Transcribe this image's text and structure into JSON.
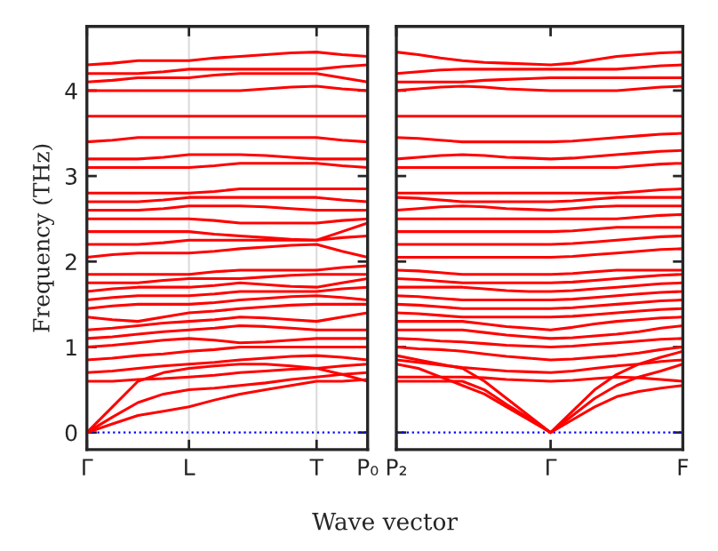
{
  "chart_data": [
    {
      "type": "line",
      "ylabel": "Frequency (THz)",
      "xlabel": "Wave vector",
      "categories": [
        "Γ",
        null,
        null,
        null,
        "L",
        null,
        null,
        null,
        null,
        "T",
        null,
        "P₀"
      ],
      "ylim": [
        -0.2,
        4.75
      ],
      "yticks": [
        0,
        1,
        2,
        3,
        4
      ],
      "grid": "x",
      "legend": false,
      "line_style": "solid",
      "ref_lines": [
        {
          "axis": "y",
          "value": 0,
          "color": "#0000ff",
          "line_style": "dotted"
        }
      ],
      "series": [
        {
          "color": "#ff0000",
          "values": [
            0,
            0.1,
            0.2,
            0.25,
            0.3,
            0.38,
            0.45,
            0.5,
            0.55,
            0.6,
            0.6,
            0.62
          ]
        },
        {
          "color": "#ff0000",
          "values": [
            0,
            0.18,
            0.35,
            0.45,
            0.5,
            0.52,
            0.55,
            0.58,
            0.62,
            0.65,
            0.68,
            0.7
          ]
        },
        {
          "color": "#ff0000",
          "values": [
            0,
            0.3,
            0.6,
            0.7,
            0.75,
            0.78,
            0.8,
            0.8,
            0.78,
            0.75,
            0.78,
            0.8
          ]
        },
        {
          "color": "#ff0000",
          "values": [
            0.6,
            0.6,
            0.62,
            0.63,
            0.65,
            0.67,
            0.7,
            0.72,
            0.74,
            0.75,
            0.68,
            0.6
          ]
        },
        {
          "color": "#ff0000",
          "values": [
            0.7,
            0.72,
            0.75,
            0.78,
            0.8,
            0.82,
            0.85,
            0.87,
            0.89,
            0.9,
            0.88,
            0.85
          ]
        },
        {
          "color": "#ff0000",
          "values": [
            0.85,
            0.87,
            0.9,
            0.92,
            0.95,
            0.97,
            1.0,
            1.0,
            1.0,
            1.0,
            1.0,
            1.0
          ]
        },
        {
          "color": "#ff0000",
          "values": [
            1.0,
            1.02,
            1.05,
            1.08,
            1.1,
            1.08,
            1.05,
            1.06,
            1.08,
            1.1,
            1.1,
            1.1
          ]
        },
        {
          "color": "#ff0000",
          "values": [
            1.1,
            1.12,
            1.15,
            1.18,
            1.2,
            1.22,
            1.25,
            1.24,
            1.22,
            1.2,
            1.2,
            1.2
          ]
        },
        {
          "color": "#ff0000",
          "values": [
            1.2,
            1.22,
            1.25,
            1.28,
            1.3,
            1.32,
            1.35,
            1.34,
            1.32,
            1.3,
            1.35,
            1.4
          ]
        },
        {
          "color": "#ff0000",
          "values": [
            1.35,
            1.32,
            1.3,
            1.35,
            1.4,
            1.42,
            1.45,
            1.47,
            1.49,
            1.5,
            1.5,
            1.5
          ]
        },
        {
          "color": "#ff0000",
          "values": [
            1.45,
            1.48,
            1.5,
            1.5,
            1.5,
            1.52,
            1.55,
            1.57,
            1.59,
            1.6,
            1.58,
            1.55
          ]
        },
        {
          "color": "#ff0000",
          "values": [
            1.55,
            1.58,
            1.6,
            1.6,
            1.6,
            1.62,
            1.65,
            1.65,
            1.65,
            1.65,
            1.68,
            1.7
          ]
        },
        {
          "color": "#ff0000",
          "values": [
            1.65,
            1.68,
            1.7,
            1.7,
            1.7,
            1.72,
            1.75,
            1.73,
            1.71,
            1.7,
            1.75,
            1.8
          ]
        },
        {
          "color": "#ff0000",
          "values": [
            1.75,
            1.75,
            1.75,
            1.78,
            1.8,
            1.8,
            1.8,
            1.82,
            1.84,
            1.85,
            1.85,
            1.85
          ]
        },
        {
          "color": "#ff0000",
          "values": [
            1.85,
            1.85,
            1.85,
            1.85,
            1.85,
            1.88,
            1.9,
            1.9,
            1.9,
            1.9,
            1.93,
            1.95
          ]
        },
        {
          "color": "#ff0000",
          "values": [
            2.05,
            2.08,
            2.1,
            2.1,
            2.1,
            2.12,
            2.15,
            2.17,
            2.19,
            2.2,
            2.12,
            2.05
          ]
        },
        {
          "color": "#ff0000",
          "values": [
            2.2,
            2.2,
            2.2,
            2.22,
            2.25,
            2.25,
            2.25,
            2.25,
            2.25,
            2.25,
            2.28,
            2.3
          ]
        },
        {
          "color": "#ff0000",
          "values": [
            2.35,
            2.35,
            2.35,
            2.35,
            2.35,
            2.32,
            2.3,
            2.28,
            2.26,
            2.25,
            2.35,
            2.45
          ]
        },
        {
          "color": "#ff0000",
          "values": [
            2.5,
            2.5,
            2.5,
            2.5,
            2.5,
            2.48,
            2.45,
            2.45,
            2.45,
            2.45,
            2.48,
            2.5
          ]
        },
        {
          "color": "#ff0000",
          "values": [
            2.6,
            2.6,
            2.6,
            2.62,
            2.65,
            2.65,
            2.65,
            2.64,
            2.62,
            2.6,
            2.6,
            2.6
          ]
        },
        {
          "color": "#ff0000",
          "values": [
            2.7,
            2.7,
            2.7,
            2.72,
            2.75,
            2.75,
            2.75,
            2.75,
            2.75,
            2.75,
            2.72,
            2.7
          ]
        },
        {
          "color": "#ff0000",
          "values": [
            2.8,
            2.8,
            2.8,
            2.8,
            2.8,
            2.82,
            2.85,
            2.85,
            2.85,
            2.85,
            2.85,
            2.85
          ]
        },
        {
          "color": "#ff0000",
          "values": [
            3.1,
            3.1,
            3.1,
            3.1,
            3.1,
            3.12,
            3.15,
            3.15,
            3.15,
            3.15,
            3.12,
            3.1
          ]
        },
        {
          "color": "#ff0000",
          "values": [
            3.2,
            3.2,
            3.2,
            3.22,
            3.25,
            3.25,
            3.25,
            3.24,
            3.22,
            3.2,
            3.2,
            3.2
          ]
        },
        {
          "color": "#ff0000",
          "values": [
            3.4,
            3.42,
            3.45,
            3.45,
            3.45,
            3.45,
            3.45,
            3.45,
            3.45,
            3.45,
            3.42,
            3.4
          ]
        },
        {
          "color": "#ff0000",
          "values": [
            3.7,
            3.7,
            3.7,
            3.7,
            3.7,
            3.7,
            3.7,
            3.7,
            3.7,
            3.7,
            3.7,
            3.7
          ]
        },
        {
          "color": "#ff0000",
          "values": [
            4.0,
            4.0,
            4.0,
            4.0,
            4.0,
            4.0,
            4.0,
            4.02,
            4.04,
            4.05,
            4.02,
            4.0
          ]
        },
        {
          "color": "#ff0000",
          "values": [
            4.1,
            4.12,
            4.15,
            4.15,
            4.15,
            4.18,
            4.2,
            4.2,
            4.2,
            4.2,
            4.15,
            4.1
          ]
        },
        {
          "color": "#ff0000",
          "values": [
            4.2,
            4.2,
            4.2,
            4.22,
            4.25,
            4.25,
            4.25,
            4.25,
            4.25,
            4.25,
            4.28,
            4.3
          ]
        },
        {
          "color": "#ff0000",
          "values": [
            4.3,
            4.32,
            4.35,
            4.35,
            4.35,
            4.38,
            4.4,
            4.42,
            4.44,
            4.45,
            4.42,
            4.4
          ]
        }
      ]
    },
    {
      "type": "line",
      "categories": [
        "P₂",
        null,
        null,
        null,
        null,
        null,
        null,
        "Γ",
        null,
        null,
        null,
        null,
        null,
        "F"
      ],
      "ylim": [
        -0.2,
        4.75
      ],
      "yticks": [
        0,
        1,
        2,
        3,
        4
      ],
      "tick_labels": "x",
      "grid": false,
      "legend": false,
      "line_style": "solid",
      "ref_lines": [
        {
          "axis": "y",
          "value": 0,
          "color": "#0000ff",
          "line_style": "dotted"
        }
      ],
      "series": [
        {
          "color": "#ff0000",
          "values": [
            0.6,
            0.6,
            0.6,
            0.6,
            0.5,
            0.33,
            0.17,
            0,
            0.15,
            0.3,
            0.42,
            0.48,
            0.52,
            0.55
          ]
        },
        {
          "color": "#ff0000",
          "values": [
            0.8,
            0.75,
            0.65,
            0.55,
            0.45,
            0.3,
            0.15,
            0,
            0.2,
            0.4,
            0.55,
            0.65,
            0.72,
            0.8
          ]
        },
        {
          "color": "#ff0000",
          "values": [
            0.9,
            0.85,
            0.8,
            0.75,
            0.6,
            0.4,
            0.2,
            0,
            0.25,
            0.5,
            0.68,
            0.8,
            0.88,
            0.95
          ]
        },
        {
          "color": "#ff0000",
          "values": [
            0.65,
            0.65,
            0.65,
            0.65,
            0.64,
            0.62,
            0.61,
            0.6,
            0.61,
            0.63,
            0.65,
            0.64,
            0.62,
            0.6
          ]
        },
        {
          "color": "#ff0000",
          "values": [
            0.85,
            0.82,
            0.79,
            0.76,
            0.74,
            0.72,
            0.71,
            0.7,
            0.72,
            0.75,
            0.78,
            0.8,
            0.83,
            0.85
          ]
        },
        {
          "color": "#ff0000",
          "values": [
            1.0,
            0.98,
            0.97,
            0.95,
            0.92,
            0.89,
            0.87,
            0.85,
            0.86,
            0.88,
            0.9,
            0.93,
            0.97,
            1.0
          ]
        },
        {
          "color": "#ff0000",
          "values": [
            1.1,
            1.09,
            1.07,
            1.06,
            1.04,
            1.02,
            1.01,
            1.0,
            1.01,
            1.03,
            1.05,
            1.07,
            1.09,
            1.1
          ]
        },
        {
          "color": "#ff0000",
          "values": [
            1.2,
            1.2,
            1.2,
            1.2,
            1.17,
            1.14,
            1.12,
            1.1,
            1.11,
            1.13,
            1.15,
            1.18,
            1.22,
            1.25
          ]
        },
        {
          "color": "#ff0000",
          "values": [
            1.3,
            1.3,
            1.3,
            1.3,
            1.27,
            1.24,
            1.22,
            1.2,
            1.23,
            1.27,
            1.3,
            1.32,
            1.34,
            1.35
          ]
        },
        {
          "color": "#ff0000",
          "values": [
            1.4,
            1.39,
            1.37,
            1.35,
            1.35,
            1.35,
            1.35,
            1.35,
            1.36,
            1.38,
            1.4,
            1.42,
            1.44,
            1.45
          ]
        },
        {
          "color": "#ff0000",
          "values": [
            1.5,
            1.49,
            1.47,
            1.45,
            1.45,
            1.45,
            1.45,
            1.45,
            1.46,
            1.48,
            1.5,
            1.52,
            1.54,
            1.55
          ]
        },
        {
          "color": "#ff0000",
          "values": [
            1.6,
            1.59,
            1.57,
            1.55,
            1.55,
            1.55,
            1.55,
            1.55,
            1.56,
            1.58,
            1.6,
            1.62,
            1.64,
            1.65
          ]
        },
        {
          "color": "#ff0000",
          "values": [
            1.7,
            1.7,
            1.7,
            1.7,
            1.68,
            1.66,
            1.65,
            1.65,
            1.66,
            1.68,
            1.7,
            1.72,
            1.74,
            1.75
          ]
        },
        {
          "color": "#ff0000",
          "values": [
            1.8,
            1.79,
            1.77,
            1.75,
            1.75,
            1.75,
            1.75,
            1.75,
            1.76,
            1.78,
            1.8,
            1.82,
            1.84,
            1.85
          ]
        },
        {
          "color": "#ff0000",
          "values": [
            1.9,
            1.89,
            1.87,
            1.85,
            1.85,
            1.85,
            1.85,
            1.85,
            1.86,
            1.88,
            1.9,
            1.9,
            1.9,
            1.9
          ]
        },
        {
          "color": "#ff0000",
          "values": [
            2.05,
            2.05,
            2.05,
            2.05,
            2.05,
            2.05,
            2.05,
            2.05,
            2.06,
            2.08,
            2.1,
            2.12,
            2.14,
            2.15
          ]
        },
        {
          "color": "#ff0000",
          "values": [
            2.2,
            2.2,
            2.2,
            2.2,
            2.2,
            2.2,
            2.2,
            2.2,
            2.21,
            2.23,
            2.25,
            2.27,
            2.29,
            2.3
          ]
        },
        {
          "color": "#ff0000",
          "values": [
            2.35,
            2.35,
            2.35,
            2.35,
            2.35,
            2.35,
            2.35,
            2.35,
            2.36,
            2.38,
            2.4,
            2.4,
            2.4,
            2.4
          ]
        },
        {
          "color": "#ff0000",
          "values": [
            2.5,
            2.5,
            2.5,
            2.5,
            2.5,
            2.5,
            2.5,
            2.5,
            2.5,
            2.5,
            2.5,
            2.52,
            2.54,
            2.55
          ]
        },
        {
          "color": "#ff0000",
          "values": [
            2.6,
            2.62,
            2.64,
            2.65,
            2.64,
            2.62,
            2.61,
            2.6,
            2.62,
            2.64,
            2.65,
            2.65,
            2.65,
            2.65
          ]
        },
        {
          "color": "#ff0000",
          "values": [
            2.75,
            2.74,
            2.72,
            2.7,
            2.7,
            2.7,
            2.7,
            2.7,
            2.71,
            2.73,
            2.75,
            2.75,
            2.75,
            2.75
          ]
        },
        {
          "color": "#ff0000",
          "values": [
            2.8,
            2.8,
            2.8,
            2.8,
            2.8,
            2.8,
            2.8,
            2.8,
            2.8,
            2.8,
            2.8,
            2.82,
            2.84,
            2.85
          ]
        },
        {
          "color": "#ff0000",
          "values": [
            3.1,
            3.1,
            3.1,
            3.1,
            3.1,
            3.1,
            3.1,
            3.1,
            3.1,
            3.1,
            3.1,
            3.12,
            3.14,
            3.15
          ]
        },
        {
          "color": "#ff0000",
          "values": [
            3.2,
            3.22,
            3.24,
            3.25,
            3.24,
            3.22,
            3.21,
            3.2,
            3.21,
            3.23,
            3.25,
            3.27,
            3.29,
            3.3
          ]
        },
        {
          "color": "#ff0000",
          "values": [
            3.45,
            3.44,
            3.42,
            3.4,
            3.4,
            3.4,
            3.4,
            3.4,
            3.41,
            3.43,
            3.45,
            3.47,
            3.49,
            3.5
          ]
        },
        {
          "color": "#ff0000",
          "values": [
            3.7,
            3.7,
            3.7,
            3.7,
            3.7,
            3.7,
            3.7,
            3.7,
            3.7,
            3.7,
            3.7,
            3.7,
            3.7,
            3.7
          ]
        },
        {
          "color": "#ff0000",
          "values": [
            4.0,
            4.02,
            4.04,
            4.05,
            4.04,
            4.02,
            4.01,
            4.0,
            4.0,
            4.0,
            4.0,
            4.02,
            4.04,
            4.05
          ]
        },
        {
          "color": "#ff0000",
          "values": [
            4.1,
            4.1,
            4.1,
            4.1,
            4.12,
            4.13,
            4.14,
            4.15,
            4.15,
            4.15,
            4.15,
            4.15,
            4.15,
            4.15
          ]
        },
        {
          "color": "#ff0000",
          "values": [
            4.2,
            4.22,
            4.24,
            4.25,
            4.25,
            4.25,
            4.25,
            4.25,
            4.25,
            4.25,
            4.25,
            4.27,
            4.29,
            4.3
          ]
        },
        {
          "color": "#ff0000",
          "values": [
            4.45,
            4.42,
            4.38,
            4.35,
            4.33,
            4.32,
            4.31,
            4.3,
            4.32,
            4.36,
            4.4,
            4.42,
            4.44,
            4.45
          ]
        }
      ]
    }
  ]
}
